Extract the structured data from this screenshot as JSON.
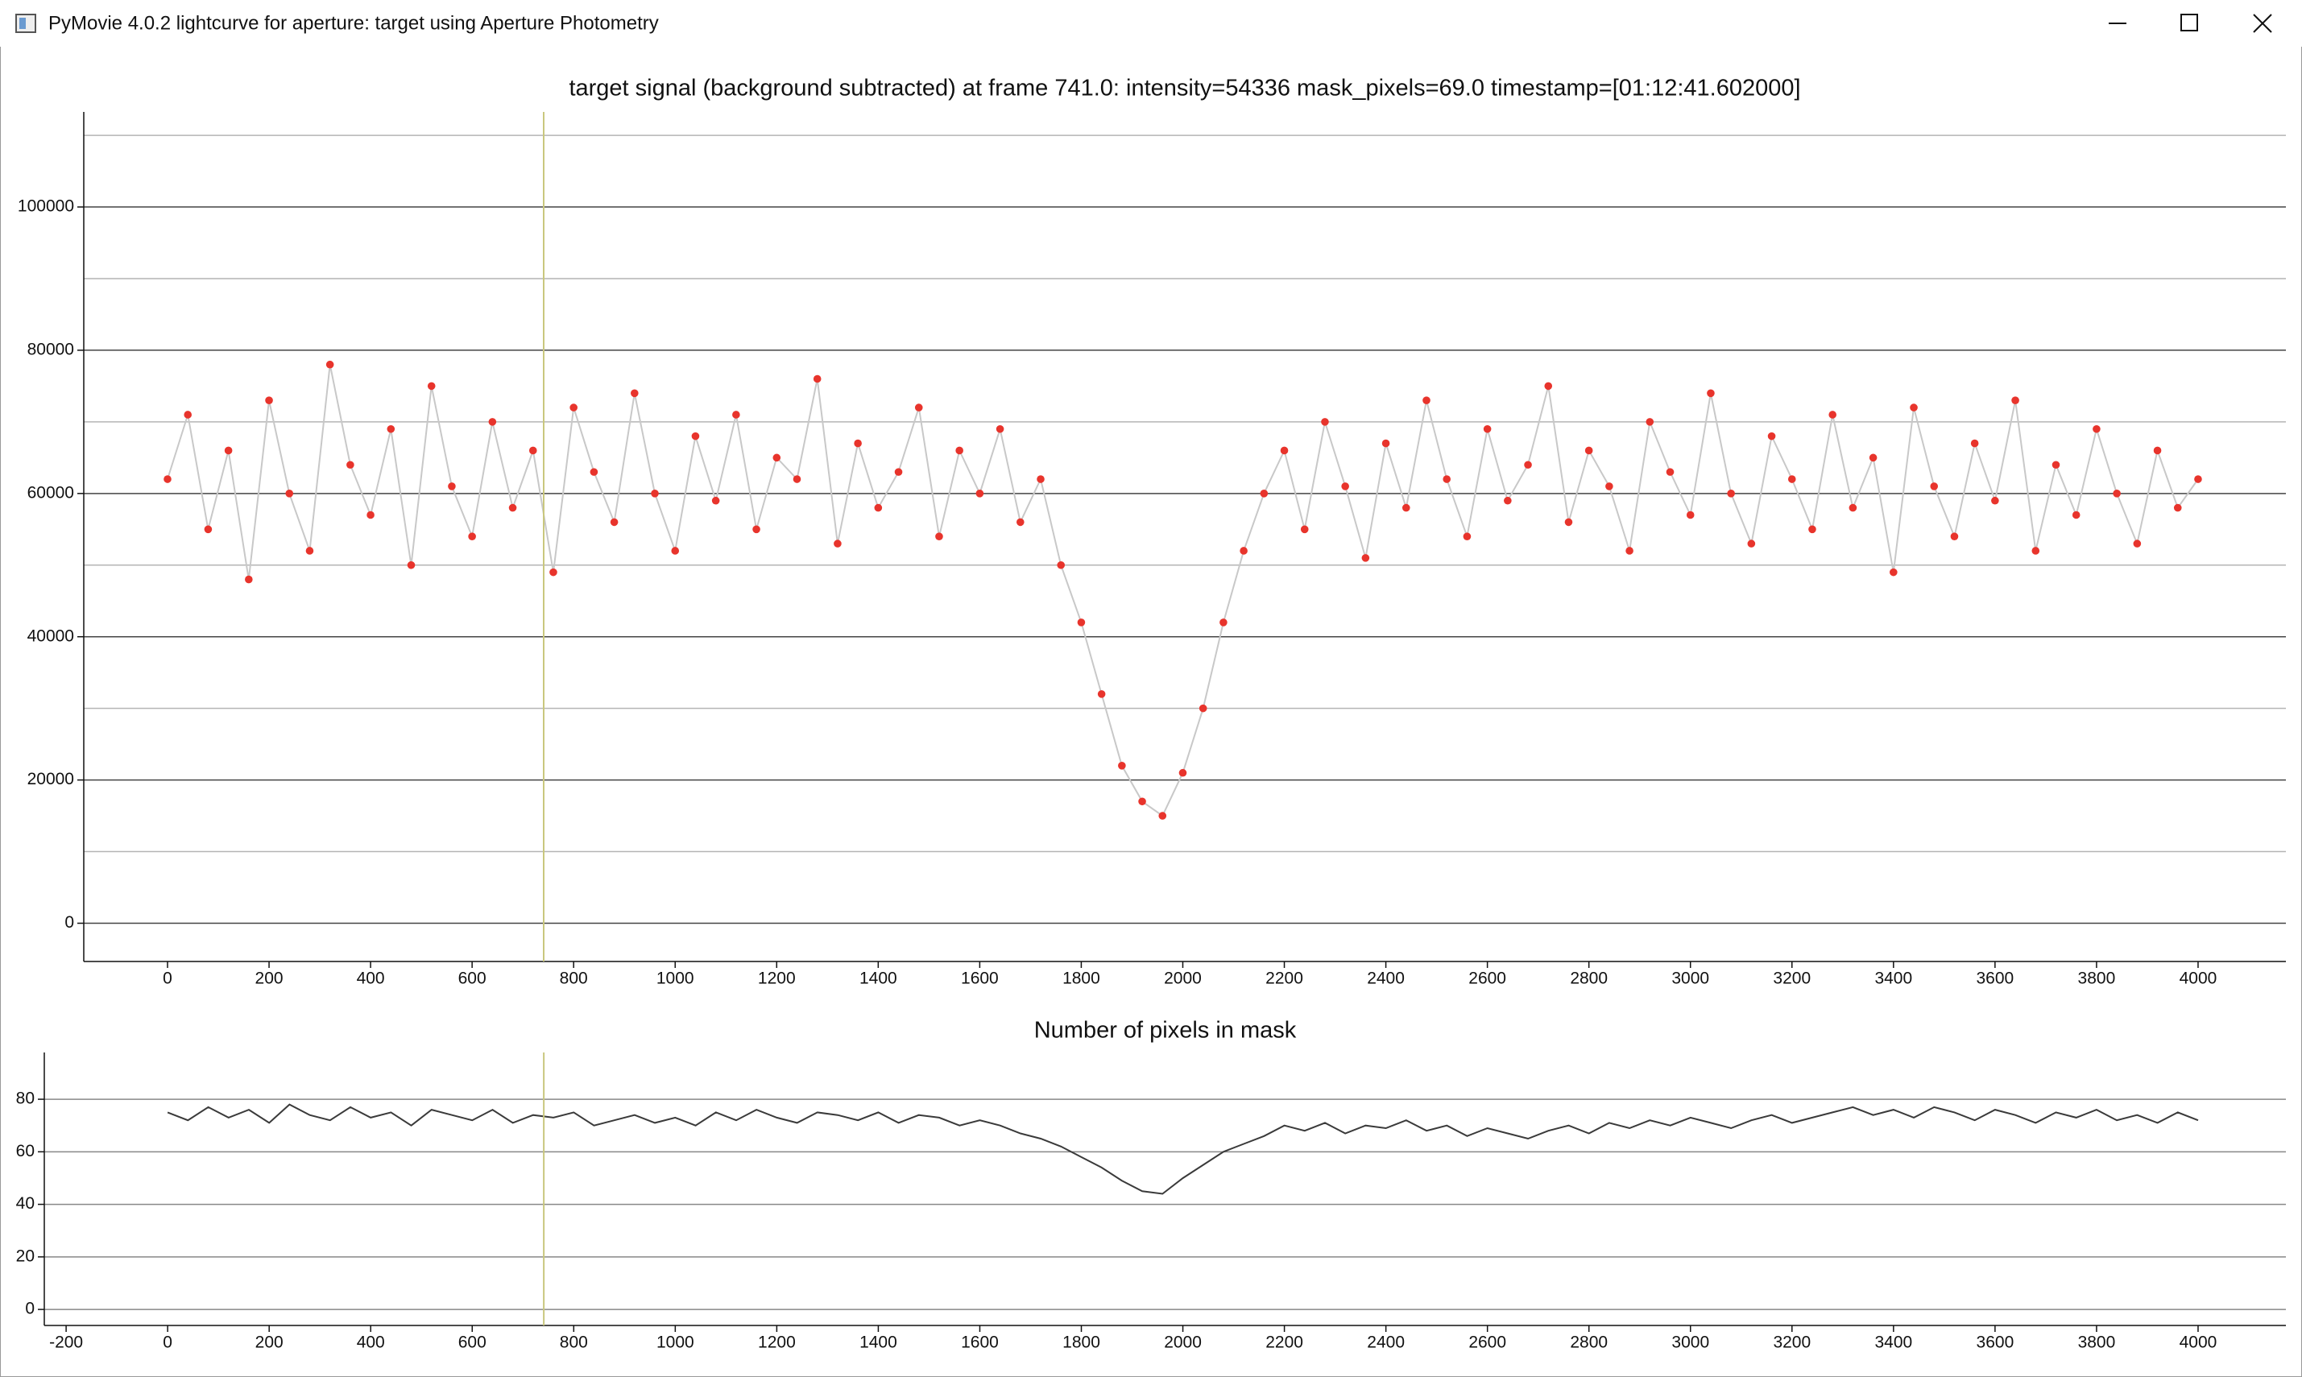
{
  "window": {
    "title": "PyMovie 4.0.2 lightcurve for aperture: target using Aperture Photometry"
  },
  "cursor_frame": 741,
  "chart_data": [
    {
      "type": "line",
      "markers": true,
      "title": "target signal (background subtracted) at frame 741.0: intensity=54336 mask_pixels=69.0 timestamp=[01:12:41.602000]",
      "x": [
        0,
        40,
        80,
        120,
        160,
        200,
        240,
        280,
        320,
        360,
        400,
        440,
        480,
        520,
        560,
        600,
        640,
        680,
        720,
        760,
        800,
        840,
        880,
        920,
        960,
        1000,
        1040,
        1080,
        1120,
        1160,
        1200,
        1240,
        1280,
        1320,
        1360,
        1400,
        1440,
        1480,
        1520,
        1560,
        1600,
        1640,
        1680,
        1720,
        1760,
        1800,
        1840,
        1880,
        1920,
        1960,
        2000,
        2040,
        2080,
        2120,
        2160,
        2200,
        2240,
        2280,
        2320,
        2360,
        2400,
        2440,
        2480,
        2520,
        2560,
        2600,
        2640,
        2680,
        2720,
        2760,
        2800,
        2840,
        2880,
        2920,
        2960,
        3000,
        3040,
        3080,
        3120,
        3160,
        3200,
        3240,
        3280,
        3320,
        3360,
        3400,
        3440,
        3480,
        3520,
        3560,
        3600,
        3640,
        3680,
        3720,
        3760,
        3800,
        3840,
        3880,
        3920,
        3960,
        4000
      ],
      "series": [
        {
          "color": "#e8342c",
          "line_color": "#c8c8c8",
          "values": [
            62000,
            71000,
            55000,
            66000,
            48000,
            73000,
            60000,
            52000,
            78000,
            64000,
            57000,
            69000,
            50000,
            75000,
            61000,
            54000,
            70000,
            58000,
            66000,
            49000,
            72000,
            63000,
            56000,
            74000,
            60000,
            52000,
            68000,
            59000,
            71000,
            55000,
            65000,
            62000,
            76000,
            53000,
            67000,
            58000,
            63000,
            72000,
            54000,
            66000,
            60000,
            69000,
            56000,
            62000,
            50000,
            42000,
            32000,
            22000,
            17000,
            15000,
            21000,
            30000,
            42000,
            52000,
            60000,
            66000,
            55000,
            70000,
            61000,
            51000,
            67000,
            58000,
            73000,
            62000,
            54000,
            69000,
            59000,
            64000,
            75000,
            56000,
            66000,
            61000,
            52000,
            70000,
            63000,
            57000,
            74000,
            60000,
            53000,
            68000,
            62000,
            55000,
            71000,
            58000,
            65000,
            49000,
            72000,
            61000,
            54000,
            67000,
            59000,
            73000,
            52000,
            64000,
            57000,
            69000,
            60000,
            53000,
            66000,
            58000,
            62000
          ]
        }
      ],
      "xlim": [
        -165,
        4173
      ],
      "xticks": [
        0,
        200,
        400,
        600,
        800,
        1000,
        1200,
        1400,
        1600,
        1800,
        2000,
        2200,
        2400,
        2600,
        2800,
        3000,
        3200,
        3400,
        3600,
        3800,
        4000
      ],
      "ylim": [
        -5340,
        113270
      ],
      "yticks": [
        0,
        20000,
        40000,
        60000,
        80000,
        100000
      ],
      "yminor": [
        10000,
        30000,
        50000,
        70000,
        90000,
        110000
      ],
      "grid": true
    },
    {
      "type": "line",
      "markers": false,
      "title": "Number of pixels in mask",
      "x": [
        0,
        40,
        80,
        120,
        160,
        200,
        240,
        280,
        320,
        360,
        400,
        440,
        480,
        520,
        560,
        600,
        640,
        680,
        720,
        760,
        800,
        840,
        880,
        920,
        960,
        1000,
        1040,
        1080,
        1120,
        1160,
        1200,
        1240,
        1280,
        1320,
        1360,
        1400,
        1440,
        1480,
        1520,
        1560,
        1600,
        1640,
        1680,
        1720,
        1760,
        1800,
        1840,
        1880,
        1920,
        1960,
        2000,
        2040,
        2080,
        2120,
        2160,
        2200,
        2240,
        2280,
        2320,
        2360,
        2400,
        2440,
        2480,
        2520,
        2560,
        2600,
        2640,
        2680,
        2720,
        2760,
        2800,
        2840,
        2880,
        2920,
        2960,
        3000,
        3040,
        3080,
        3120,
        3160,
        3200,
        3240,
        3280,
        3320,
        3360,
        3400,
        3440,
        3480,
        3520,
        3560,
        3600,
        3640,
        3680,
        3720,
        3760,
        3800,
        3840,
        3880,
        3920,
        3960,
        4000
      ],
      "series": [
        {
          "color": "#3a3a3a",
          "values": [
            75,
            72,
            77,
            73,
            76,
            71,
            78,
            74,
            72,
            77,
            73,
            75,
            70,
            76,
            74,
            72,
            76,
            71,
            74,
            73,
            75,
            70,
            72,
            74,
            71,
            73,
            70,
            75,
            72,
            76,
            73,
            71,
            75,
            74,
            72,
            75,
            71,
            74,
            73,
            70,
            72,
            70,
            67,
            65,
            62,
            58,
            54,
            49,
            45,
            44,
            50,
            55,
            60,
            63,
            66,
            70,
            68,
            71,
            67,
            70,
            69,
            72,
            68,
            70,
            66,
            69,
            67,
            65,
            68,
            70,
            67,
            71,
            69,
            72,
            70,
            73,
            71,
            69,
            72,
            74,
            71,
            73,
            75,
            77,
            74,
            76,
            73,
            77,
            75,
            72,
            76,
            74,
            71,
            75,
            73,
            76,
            72,
            74,
            71,
            75,
            72
          ]
        }
      ],
      "xlim": [
        -243,
        4173
      ],
      "xticks": [
        -200,
        0,
        200,
        400,
        600,
        800,
        1000,
        1200,
        1400,
        1600,
        1800,
        2000,
        2200,
        2400,
        2600,
        2800,
        3000,
        3200,
        3400,
        3600,
        3800,
        4000
      ],
      "ylim": [
        -6.1,
        97.8
      ],
      "yticks": [
        0,
        20,
        40,
        60,
        80
      ],
      "grid": true
    }
  ]
}
